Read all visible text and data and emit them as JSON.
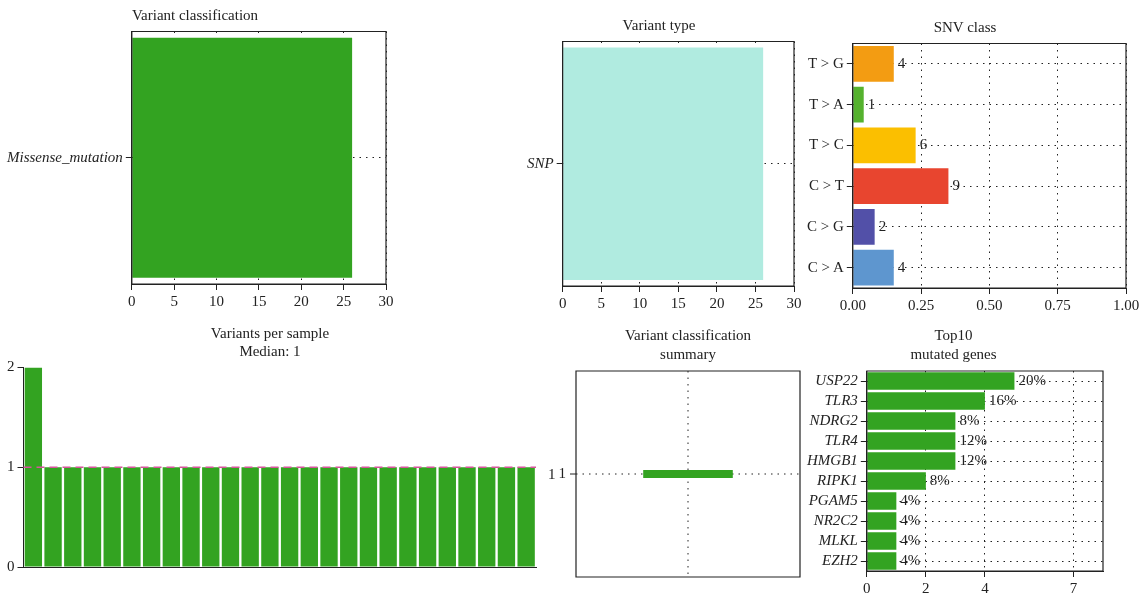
{
  "chart_data": [
    {
      "type": "bar",
      "orientation": "horizontal",
      "title": "Variant classification",
      "categories": [
        "Missense_mutation"
      ],
      "values": [
        26
      ],
      "color": "#33a321",
      "xlim": [
        0,
        30
      ],
      "xticks": [
        0,
        5,
        10,
        15,
        20,
        25,
        30
      ],
      "grid": true
    },
    {
      "type": "bar",
      "orientation": "horizontal",
      "title": "Variant type",
      "categories": [
        "SNP"
      ],
      "values": [
        26
      ],
      "color": "#b0ebe0",
      "xlim": [
        0,
        30
      ],
      "xticks": [
        0,
        5,
        10,
        15,
        20,
        25,
        30
      ],
      "grid": true
    },
    {
      "type": "bar",
      "orientation": "horizontal",
      "title": "SNV class",
      "categories": [
        "T > G",
        "T > A",
        "T > C",
        "C > T",
        "C > G",
        "C > A"
      ],
      "values": [
        0.15,
        0.04,
        0.23,
        0.35,
        0.08,
        0.15
      ],
      "colors": [
        "#f39c12",
        "#55b22e",
        "#fbbf00",
        "#e8452f",
        "#5250a8",
        "#5e96cf"
      ],
      "annotations": [
        {
          "text": "4",
          "x": 0.15,
          "y": "T > G"
        },
        {
          "text": "1",
          "x": 0.04,
          "y": "T > A"
        },
        {
          "text": "6",
          "x": 0.23,
          "y": "T > C"
        },
        {
          "text": "9",
          "x": 0.35,
          "y": "C > T"
        },
        {
          "text": "2",
          "x": 0.08,
          "y": "C > G"
        },
        {
          "text": "4",
          "x": 0.15,
          "y": "C > A"
        }
      ],
      "xlim": [
        0,
        1
      ],
      "xticks": [
        {
          "value": 0,
          "label": "0.00"
        },
        {
          "value": 0.25,
          "label": "0.25"
        },
        {
          "value": 0.5,
          "label": "0.50"
        },
        {
          "value": 0.75,
          "label": "0.75"
        },
        {
          "value": 1,
          "label": "1.00"
        }
      ],
      "grid": true
    },
    {
      "type": "bar",
      "title": "Variants per sample",
      "subtitle": "Median: 1",
      "categories": [
        null,
        null,
        null,
        null,
        null,
        null,
        null,
        null,
        null,
        null,
        null,
        null,
        null,
        null,
        null,
        null,
        null,
        null,
        null,
        null,
        null,
        null,
        null,
        null,
        null,
        null
      ],
      "values": [
        2,
        1,
        1,
        1,
        1,
        1,
        1,
        1,
        1,
        1,
        1,
        1,
        1,
        1,
        1,
        1,
        1,
        1,
        1,
        1,
        1,
        1,
        1,
        1,
        1,
        1
      ],
      "color": "#33a321",
      "ylim": [
        0,
        2
      ],
      "yticks": [
        0,
        1,
        2
      ],
      "ref_lines": [
        {
          "axis": "y",
          "value": 1,
          "label": "1",
          "color": "#d6559b",
          "line_style": "dashed"
        }
      ],
      "tick_labels": "y"
    },
    {
      "type": "other",
      "title": "Variant classification summary",
      "annotations": [
        "1"
      ],
      "color": "#33a321"
    },
    {
      "type": "bar",
      "orientation": "horizontal",
      "title": "Top10 mutated genes",
      "categories": [
        "USP22",
        "TLR3",
        "NDRG2",
        "TLR4",
        "HMGB1",
        "RIPK1",
        "PGAM5",
        "NR2C2",
        "MLKL",
        "EZH2"
      ],
      "values": [
        5,
        4,
        3,
        3,
        3,
        2,
        1,
        1,
        1,
        1
      ],
      "color": "#33a321",
      "annotations": [
        {
          "text": "20%",
          "x": 5,
          "y": "USP22"
        },
        {
          "text": "16%",
          "x": 4,
          "y": "TLR3"
        },
        {
          "text": "8%",
          "x": 3,
          "y": "NDRG2"
        },
        {
          "text": "12%",
          "x": 3,
          "y": "TLR4"
        },
        {
          "text": "12%",
          "x": 3,
          "y": "HMGB1"
        },
        {
          "text": "8%",
          "x": 2,
          "y": "RIPK1"
        },
        {
          "text": "4%",
          "x": 1,
          "y": "PGAM5"
        },
        {
          "text": "4%",
          "x": 1,
          "y": "NR2C2"
        },
        {
          "text": "4%",
          "x": 1,
          "y": "MLKL"
        },
        {
          "text": "4%",
          "x": 1,
          "y": "EZH2"
        }
      ],
      "xlim": [
        0,
        8
      ],
      "xticks": [
        0,
        2,
        4,
        7
      ],
      "grid": true
    }
  ]
}
